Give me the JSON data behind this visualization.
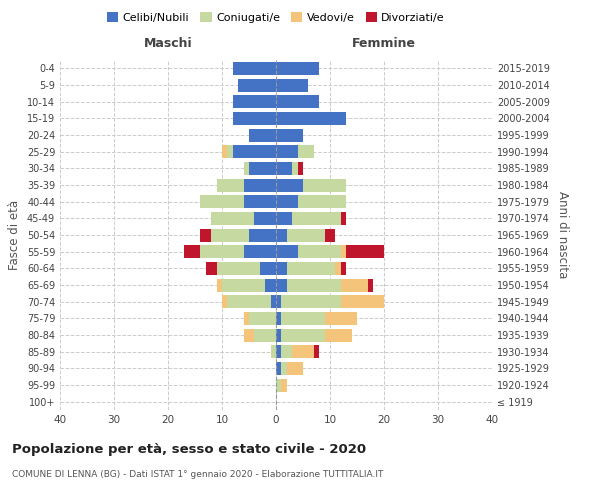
{
  "age_groups": [
    "100+",
    "95-99",
    "90-94",
    "85-89",
    "80-84",
    "75-79",
    "70-74",
    "65-69",
    "60-64",
    "55-59",
    "50-54",
    "45-49",
    "40-44",
    "35-39",
    "30-34",
    "25-29",
    "20-24",
    "15-19",
    "10-14",
    "5-9",
    "0-4"
  ],
  "birth_years": [
    "≤ 1919",
    "1920-1924",
    "1925-1929",
    "1930-1934",
    "1935-1939",
    "1940-1944",
    "1945-1949",
    "1950-1954",
    "1955-1959",
    "1960-1964",
    "1965-1969",
    "1970-1974",
    "1975-1979",
    "1980-1984",
    "1985-1989",
    "1990-1994",
    "1995-1999",
    "2000-2004",
    "2005-2009",
    "2010-2014",
    "2015-2019"
  ],
  "colors": {
    "celibi": "#4472C4",
    "coniugati": "#C5D9A0",
    "vedovi": "#F4C47A",
    "divorziati": "#C0162D"
  },
  "males": {
    "celibi": [
      0,
      0,
      0,
      0,
      0,
      0,
      1,
      2,
      3,
      6,
      5,
      4,
      6,
      6,
      5,
      8,
      5,
      8,
      8,
      7,
      8
    ],
    "coniugati": [
      0,
      0,
      0,
      1,
      4,
      5,
      8,
      8,
      8,
      8,
      7,
      8,
      8,
      5,
      1,
      1,
      0,
      0,
      0,
      0,
      0
    ],
    "vedovi": [
      0,
      0,
      0,
      0,
      2,
      1,
      1,
      1,
      0,
      0,
      0,
      0,
      0,
      0,
      0,
      1,
      0,
      0,
      0,
      0,
      0
    ],
    "divorziati": [
      0,
      0,
      0,
      0,
      0,
      0,
      0,
      0,
      2,
      3,
      2,
      0,
      0,
      0,
      0,
      0,
      0,
      0,
      0,
      0,
      0
    ]
  },
  "females": {
    "celibi": [
      0,
      0,
      1,
      1,
      1,
      1,
      1,
      2,
      2,
      4,
      2,
      3,
      4,
      5,
      3,
      4,
      5,
      13,
      8,
      6,
      8
    ],
    "coniugati": [
      0,
      1,
      1,
      2,
      8,
      8,
      11,
      10,
      9,
      8,
      7,
      9,
      9,
      8,
      1,
      3,
      0,
      0,
      0,
      0,
      0
    ],
    "vedovi": [
      0,
      1,
      3,
      4,
      5,
      6,
      8,
      5,
      1,
      1,
      0,
      0,
      0,
      0,
      0,
      0,
      0,
      0,
      0,
      0,
      0
    ],
    "divorziati": [
      0,
      0,
      0,
      1,
      0,
      0,
      0,
      1,
      1,
      7,
      2,
      1,
      0,
      0,
      1,
      0,
      0,
      0,
      0,
      0,
      0
    ]
  },
  "xlim": 40,
  "title": "Popolazione per età, sesso e stato civile - 2020",
  "subtitle": "COMUNE DI LENNA (BG) - Dati ISTAT 1° gennaio 2020 - Elaborazione TUTTITALIA.IT",
  "ylabel_left": "Fasce di età",
  "ylabel_right": "Anni di nascita",
  "legend_labels": [
    "Celibi/Nubili",
    "Coniugati/e",
    "Vedovi/e",
    "Divorziati/e"
  ],
  "maschi_label": "Maschi",
  "femmine_label": "Femmine",
  "bg_color": "#ffffff"
}
